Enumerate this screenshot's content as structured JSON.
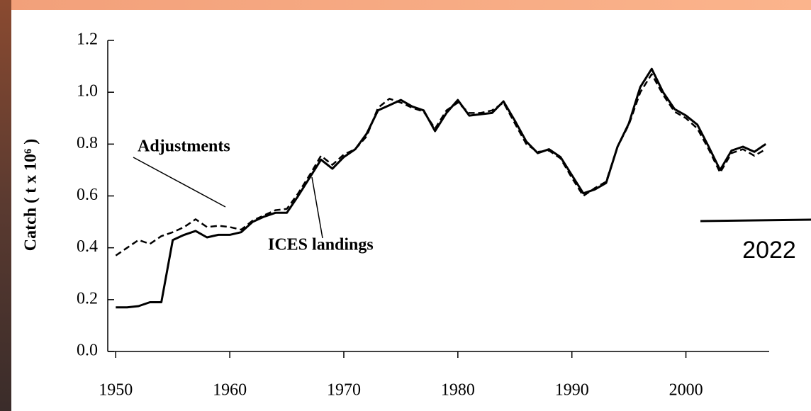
{
  "chart_data": {
    "type": "line",
    "y_label": "Catch ( t x 10⁶ )",
    "annotations": [
      "Adjustments",
      "ICES landings",
      "2022"
    ],
    "x": [
      1950,
      1951,
      1952,
      1953,
      1954,
      1955,
      1956,
      1957,
      1958,
      1959,
      1960,
      1961,
      1962,
      1963,
      1964,
      1965,
      1966,
      1967,
      1968,
      1969,
      1970,
      1971,
      1972,
      1973,
      1974,
      1975,
      1976,
      1977,
      1978,
      1979,
      1980,
      1981,
      1982,
      1983,
      1984,
      1985,
      1986,
      1987,
      1988,
      1989,
      1990,
      1991,
      1992,
      1993,
      1994,
      1995,
      1996,
      1997,
      1998,
      1999,
      2000,
      2001,
      2002,
      2003,
      2004,
      2005,
      2006,
      2007
    ],
    "series": [
      {
        "name": "ICES landings",
        "color": "#000000",
        "dash": false,
        "values": [
          0.17,
          0.17,
          0.175,
          0.19,
          0.19,
          0.43,
          0.45,
          0.465,
          0.44,
          0.45,
          0.45,
          0.46,
          0.5,
          0.52,
          0.535,
          0.535,
          0.6,
          0.67,
          0.74,
          0.705,
          0.75,
          0.78,
          0.84,
          0.93,
          0.95,
          0.97,
          0.945,
          0.93,
          0.85,
          0.92,
          0.97,
          0.91,
          0.915,
          0.92,
          0.965,
          0.89,
          0.81,
          0.765,
          0.78,
          0.75,
          0.68,
          0.61,
          0.625,
          0.65,
          0.79,
          0.88,
          1.02,
          1.09,
          1.0,
          0.935,
          0.91,
          0.875,
          0.79,
          0.7,
          0.775,
          0.79,
          0.77,
          0.8
        ]
      },
      {
        "name": "Adjustments",
        "color": "#000000",
        "dash": true,
        "values": [
          0.37,
          0.4,
          0.43,
          0.415,
          0.445,
          0.46,
          0.48,
          0.51,
          0.48,
          0.485,
          0.48,
          0.47,
          0.505,
          0.525,
          0.545,
          0.55,
          0.61,
          0.68,
          0.755,
          0.72,
          0.76,
          0.78,
          0.83,
          0.94,
          0.975,
          0.96,
          0.94,
          0.925,
          0.86,
          0.93,
          0.96,
          0.92,
          0.92,
          0.93,
          0.96,
          0.88,
          0.8,
          0.77,
          0.775,
          0.745,
          0.67,
          0.6,
          0.63,
          0.655,
          0.79,
          0.875,
          1.0,
          1.07,
          0.99,
          0.925,
          0.9,
          0.86,
          0.78,
          0.69,
          0.765,
          0.78,
          0.755,
          0.78
        ]
      }
    ],
    "xlim": [
      1949.3,
      2007.3
    ],
    "xticks": [
      1950,
      1960,
      1970,
      1980,
      1990,
      2000
    ],
    "ylim": [
      0,
      1.2
    ],
    "yticks": [
      {
        "value": 0,
        "label": "0.0"
      },
      0.2,
      0.4,
      0.6,
      0.8,
      {
        "value": 1,
        "label": "1.0"
      },
      1.2
    ],
    "grid": false
  }
}
